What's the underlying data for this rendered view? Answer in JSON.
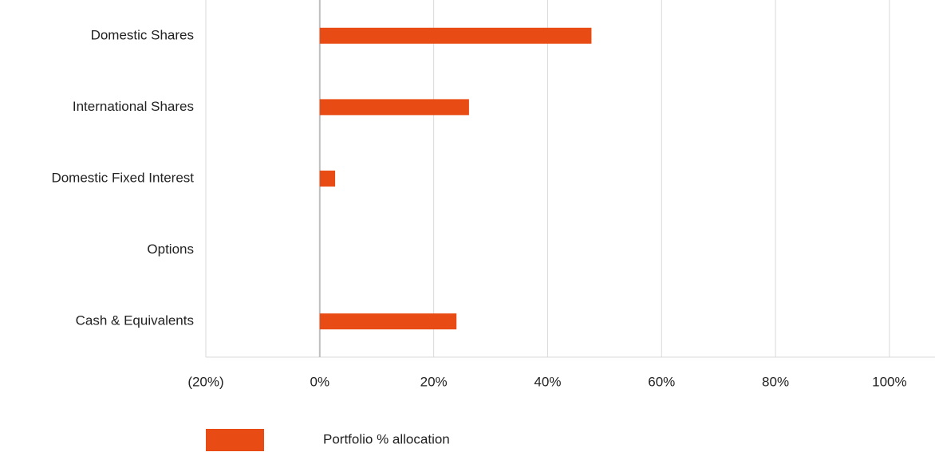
{
  "chart_data": {
    "type": "hbar",
    "categories": [
      "Domestic Shares",
      "International Shares",
      "Domestic Fixed Interest",
      "Options",
      "Cash & Equivalents"
    ],
    "series": [
      {
        "name": "Portfolio % allocation",
        "color": "#e84c14",
        "values": [
          47.7,
          26.2,
          2.7,
          0,
          24.0
        ]
      }
    ],
    "xlim": [
      -20,
      108
    ],
    "xticks": [
      {
        "value": -20,
        "label": "(20%)"
      },
      {
        "value": 0,
        "label": "0%"
      },
      {
        "value": 20,
        "label": "20%"
      },
      {
        "value": 40,
        "label": "40%"
      },
      {
        "value": 60,
        "label": "60%"
      },
      {
        "value": 80,
        "label": "80%"
      },
      {
        "value": 100,
        "label": "100%"
      }
    ],
    "grid": true,
    "legend": "bottom"
  }
}
